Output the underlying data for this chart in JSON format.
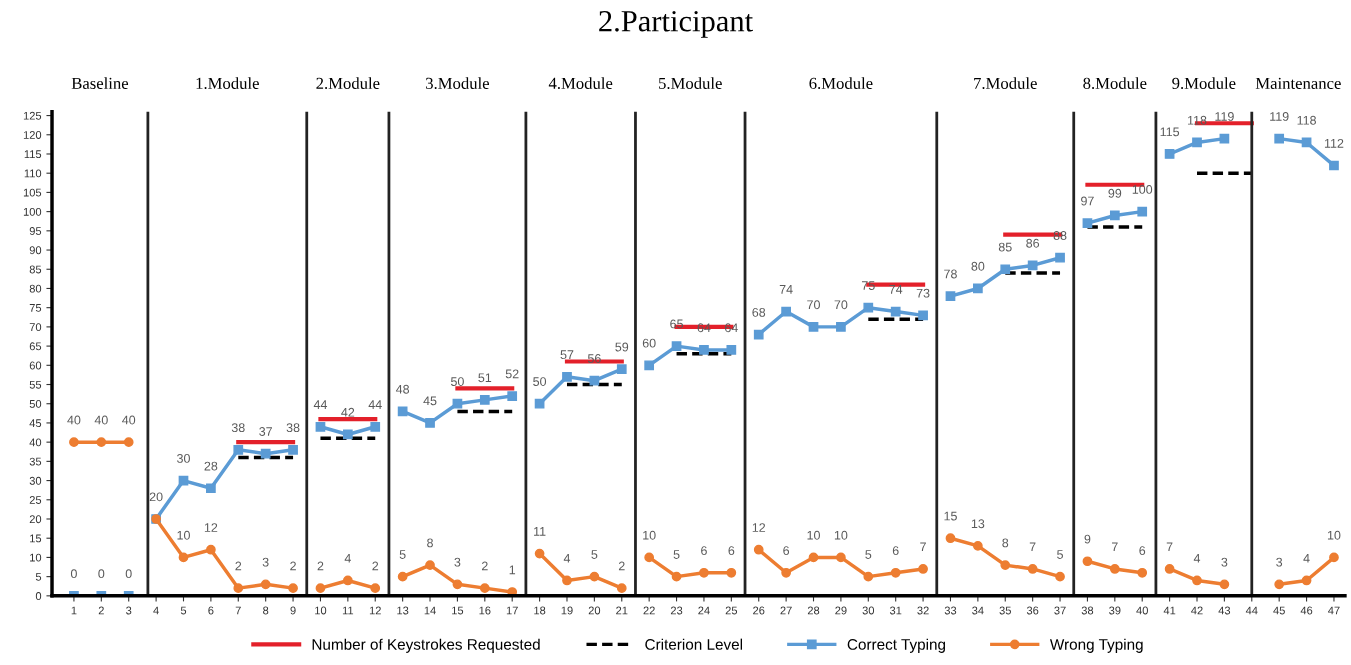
{
  "chart_data": {
    "type": "line",
    "title": "2.Participant",
    "x": [
      1,
      2,
      3,
      4,
      5,
      6,
      7,
      8,
      9,
      10,
      11,
      12,
      13,
      14,
      15,
      16,
      17,
      18,
      19,
      20,
      21,
      22,
      23,
      24,
      25,
      26,
      27,
      28,
      29,
      30,
      31,
      32,
      33,
      34,
      35,
      36,
      37,
      38,
      39,
      40,
      41,
      42,
      43,
      44,
      45,
      46,
      47
    ],
    "xlim": [
      0.2,
      47.4
    ],
    "xticks": [
      1,
      2,
      3,
      4,
      5,
      6,
      7,
      8,
      9,
      10,
      11,
      12,
      13,
      14,
      15,
      16,
      17,
      18,
      19,
      20,
      21,
      22,
      23,
      24,
      25,
      26,
      27,
      28,
      29,
      30,
      31,
      32,
      33,
      34,
      35,
      36,
      37,
      38,
      39,
      40,
      41,
      42,
      43,
      44,
      45,
      46,
      47
    ],
    "ylim": [
      0,
      126
    ],
    "yticks": [
      0,
      5,
      10,
      15,
      20,
      25,
      30,
      35,
      40,
      45,
      50,
      55,
      60,
      65,
      70,
      75,
      80,
      85,
      90,
      95,
      100,
      105,
      110,
      115,
      120,
      125
    ],
    "ref_lines": [
      {
        "axis": "x",
        "value": 3.7
      },
      {
        "axis": "x",
        "value": 9.5
      },
      {
        "axis": "x",
        "value": 12.5
      },
      {
        "axis": "x",
        "value": 17.5
      },
      {
        "axis": "x",
        "value": 21.5
      },
      {
        "axis": "x",
        "value": 25.5
      },
      {
        "axis": "x",
        "value": 32.5
      },
      {
        "axis": "x",
        "value": 37.5
      },
      {
        "axis": "x",
        "value": 40.5
      },
      {
        "axis": "x",
        "value": 44
      }
    ],
    "annotations": [
      "Baseline",
      "1.Module",
      "2.Module",
      "3.Module",
      "4.Module",
      "5.Module",
      "6.Module",
      "7.Module",
      "8.Module",
      "9.Module",
      "Maintenance"
    ],
    "series": [
      {
        "name": "Number of Keystrokes Requested",
        "color": "#e3202a",
        "line_style": "solid",
        "marker": "none",
        "x": [
          7,
          9,
          10,
          12,
          15,
          17,
          19,
          21,
          23,
          25,
          30,
          32,
          35,
          37,
          38,
          40,
          42,
          44
        ],
        "values": [
          40,
          40,
          46,
          46,
          54,
          54,
          61,
          61,
          70,
          70,
          81,
          81,
          94,
          94,
          107,
          107,
          123,
          123
        ]
      },
      {
        "name": "Criterion Level",
        "color": "#000000",
        "line_style": "dashed",
        "marker": "none",
        "x": [
          7,
          9,
          10,
          12,
          15,
          17,
          19,
          21,
          23,
          25,
          30,
          32,
          35,
          37,
          38,
          40,
          42,
          44
        ],
        "values": [
          36,
          36,
          41,
          41,
          48,
          48,
          55,
          55,
          63,
          63,
          72,
          72,
          84,
          84,
          96,
          96,
          110,
          110
        ]
      },
      {
        "name": "Correct Typing",
        "color": "#5b9bd5",
        "line_style": "solid",
        "marker": "square",
        "values": [
          0,
          0,
          0,
          20,
          30,
          28,
          38,
          37,
          38,
          44,
          42,
          44,
          48,
          45,
          50,
          51,
          52,
          50,
          57,
          56,
          59,
          60,
          65,
          64,
          64,
          68,
          74,
          70,
          70,
          75,
          74,
          73,
          78,
          80,
          85,
          86,
          88,
          97,
          99,
          100,
          115,
          118,
          119,
          null,
          119,
          118,
          112
        ],
        "value_labels": [
          "0",
          "0",
          "0",
          "20",
          "30",
          "28",
          "38",
          "37",
          "38",
          "44",
          "42",
          "44",
          "48",
          "45",
          "50",
          "51",
          "52",
          "50",
          "57",
          "56",
          "59",
          "60",
          "65",
          "64",
          "64",
          "68",
          "74",
          "70",
          "70",
          "75",
          "74",
          "73",
          "78",
          "80",
          "85",
          "86",
          "88",
          "97",
          "99",
          "100",
          "115",
          "118",
          "119",
          null,
          "119",
          "118",
          "112"
        ]
      },
      {
        "name": "Wrong Typing",
        "color": "#ed7d31",
        "line_style": "solid",
        "marker": "circle",
        "values": [
          40,
          40,
          40,
          20,
          10,
          12,
          2,
          3,
          2,
          2,
          4,
          2,
          5,
          8,
          3,
          2,
          1,
          11,
          4,
          5,
          2,
          10,
          5,
          6,
          6,
          12,
          6,
          10,
          10,
          5,
          6,
          7,
          15,
          13,
          8,
          7,
          5,
          9,
          7,
          6,
          7,
          4,
          3,
          null,
          3,
          4,
          10
        ],
        "value_labels": [
          "40",
          "40",
          "40",
          null,
          "10",
          "12",
          "2",
          "3",
          "2",
          "2",
          "4",
          "2",
          "5",
          "8",
          "3",
          "2",
          "1",
          "11",
          "4",
          "5",
          "2",
          "10",
          "5",
          "6",
          "6",
          "12",
          "6",
          "10",
          "10",
          "5",
          "6",
          "7",
          "15",
          "13",
          "8",
          "7",
          "5",
          "9",
          "7",
          "6",
          "7",
          "4",
          "3",
          null,
          "3",
          "4",
          "10"
        ]
      }
    ],
    "legend": "bottom",
    "grid": false
  }
}
